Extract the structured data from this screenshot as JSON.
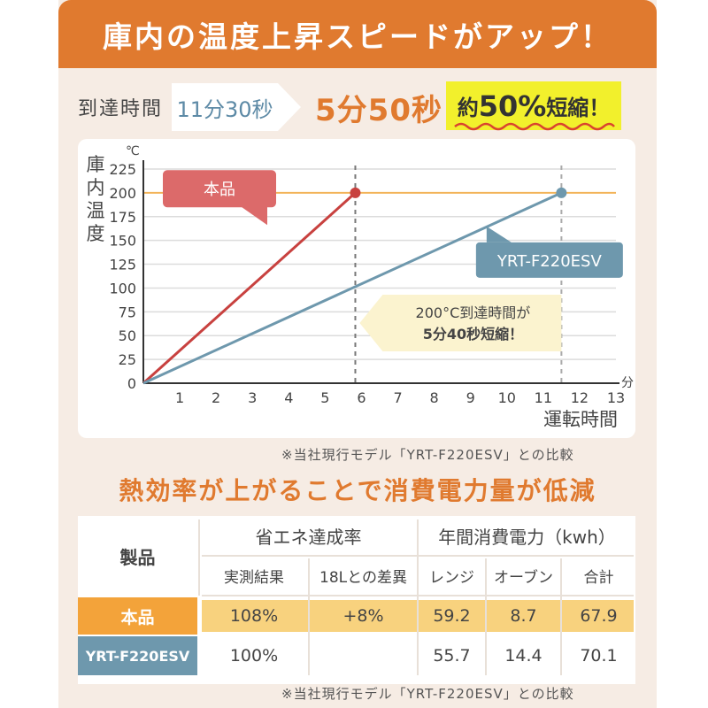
{
  "banner": {
    "title": "庫内の温度上昇スピードがアップ！"
  },
  "speed": {
    "label": "到達時間",
    "old_time": "11分30秒",
    "new_time": "5分50秒",
    "reduction": {
      "prefix": "約",
      "value": "50%",
      "suffix": "短縮！"
    }
  },
  "chart_data": {
    "type": "line",
    "yunit": "℃",
    "ylabel": "庫内温度",
    "xunit": "分",
    "xlabel": "運転時間",
    "xlim": [
      0,
      13
    ],
    "ylim": [
      0,
      225
    ],
    "xticks": [
      1,
      2,
      3,
      4,
      5,
      6,
      7,
      8,
      9,
      10,
      11,
      12,
      13
    ],
    "yticks": [
      0,
      25,
      50,
      75,
      100,
      125,
      150,
      175,
      200,
      225
    ],
    "target_value": 200,
    "series": [
      {
        "name": "本品",
        "color": "#c8413f",
        "x": [
          0,
          5.83
        ],
        "y": [
          0,
          200
        ]
      },
      {
        "name": "YRT-F220ESV",
        "color": "#6e98ad",
        "x": [
          0,
          11.5
        ],
        "y": [
          0,
          200
        ]
      }
    ],
    "annotation": {
      "line1": "200°C到達時間が",
      "line2": "5分40秒短縮！"
    }
  },
  "chart_note": "※当社現行モデル「YRT-F220ESV」との比較",
  "efficiency_heading": "熱効率が上がることで消費電力量が低減",
  "table": {
    "col_product": "製品",
    "group_energy": "省エネ達成率",
    "group_power": "年間消費電力（kwh）",
    "sub_headers": [
      "実測結果",
      "18Lとの差異",
      "レンジ",
      "オーブン",
      "合計"
    ],
    "rows": [
      {
        "product": "本品",
        "values": [
          "108%",
          "+8%",
          "59.2",
          "8.7",
          "67.9"
        ]
      },
      {
        "product": "YRT-F220ESV",
        "values": [
          "100%",
          "",
          "55.7",
          "14.4",
          "70.1"
        ]
      }
    ]
  },
  "table_note": "※当社現行モデル「YRT-F220ESV」との比較",
  "colors": {
    "accent": "#e07a2f",
    "product": "#c8413f",
    "old_model": "#6e98ad",
    "highlight": "#f8d27e",
    "yellow": "#f2f02c"
  }
}
